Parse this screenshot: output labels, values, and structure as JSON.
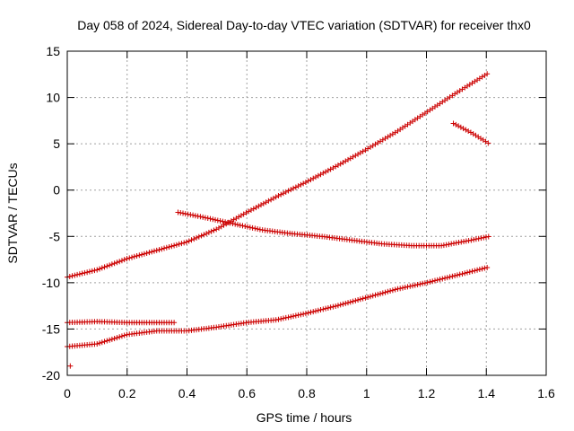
{
  "chart_data": {
    "type": "scatter",
    "title": "Day 058 of 2024, Sidereal Day-to-day VTEC variation (SDTVAR) for receiver thx0",
    "xlabel": "GPS time / hours",
    "ylabel": "SDTVAR / TECUs",
    "xlim": [
      0,
      1.6
    ],
    "ylim": [
      -20,
      15
    ],
    "xticks": [
      0,
      0.2,
      0.4,
      0.6,
      0.8,
      1,
      1.2,
      1.4,
      1.6
    ],
    "xtick_labels": [
      "0",
      "0.2",
      "0.4",
      "0.6",
      "0.8",
      "1",
      "1.2",
      "1.4",
      "1.6"
    ],
    "yticks": [
      -20,
      -15,
      -10,
      -5,
      0,
      5,
      10,
      15
    ],
    "ytick_labels": [
      "-20",
      "-15",
      "-10",
      "-5",
      "0",
      "5",
      "10",
      "15"
    ],
    "grid": true,
    "marker": "+",
    "color": "#cc0000",
    "series": [
      {
        "name": "series-a",
        "x_range": [
          0,
          1.41
        ],
        "knots": [
          [
            0,
            -9.4
          ],
          [
            0.1,
            -8.6
          ],
          [
            0.2,
            -7.4
          ],
          [
            0.3,
            -6.5
          ],
          [
            0.4,
            -5.6
          ],
          [
            0.5,
            -4.2
          ],
          [
            0.6,
            -2.4
          ],
          [
            0.7,
            -0.7
          ],
          [
            0.8,
            0.9
          ],
          [
            0.9,
            2.6
          ],
          [
            1.0,
            4.4
          ],
          [
            1.1,
            6.3
          ],
          [
            1.2,
            8.4
          ],
          [
            1.3,
            10.5
          ],
          [
            1.41,
            12.7
          ]
        ]
      },
      {
        "name": "series-b",
        "x_range": [
          0.37,
          1.41
        ],
        "knots": [
          [
            0.37,
            -2.4
          ],
          [
            0.45,
            -2.9
          ],
          [
            0.55,
            -3.6
          ],
          [
            0.65,
            -4.3
          ],
          [
            0.75,
            -4.7
          ],
          [
            0.85,
            -5.0
          ],
          [
            0.95,
            -5.4
          ],
          [
            1.05,
            -5.8
          ],
          [
            1.15,
            -6.0
          ],
          [
            1.25,
            -6.0
          ],
          [
            1.35,
            -5.4
          ],
          [
            1.41,
            -5.0
          ]
        ]
      },
      {
        "name": "series-c",
        "x_range": [
          0,
          1.41
        ],
        "knots": [
          [
            0,
            -16.9
          ],
          [
            0.1,
            -16.6
          ],
          [
            0.2,
            -15.6
          ],
          [
            0.3,
            -15.2
          ],
          [
            0.4,
            -15.2
          ],
          [
            0.5,
            -14.8
          ],
          [
            0.6,
            -14.3
          ],
          [
            0.7,
            -14.0
          ],
          [
            0.8,
            -13.3
          ],
          [
            0.9,
            -12.5
          ],
          [
            1.0,
            -11.6
          ],
          [
            1.1,
            -10.7
          ],
          [
            1.2,
            -10.0
          ],
          [
            1.3,
            -9.2
          ],
          [
            1.41,
            -8.3
          ]
        ]
      },
      {
        "name": "series-d",
        "x_range": [
          0,
          0.36
        ],
        "knots": [
          [
            0,
            -14.3
          ],
          [
            0.1,
            -14.2
          ],
          [
            0.2,
            -14.3
          ],
          [
            0.36,
            -14.3
          ]
        ]
      },
      {
        "name": "series-e",
        "x_range": [
          1.29,
          1.41
        ],
        "knots": [
          [
            1.29,
            7.2
          ],
          [
            1.35,
            6.2
          ],
          [
            1.41,
            5.0
          ]
        ]
      },
      {
        "name": "outlier",
        "points": [
          [
            0.01,
            -19.0
          ]
        ]
      }
    ]
  }
}
